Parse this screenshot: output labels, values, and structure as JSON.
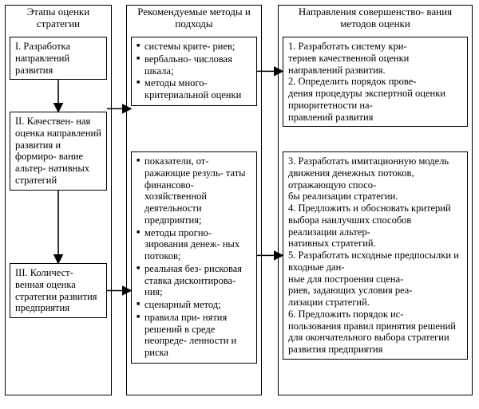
{
  "type": "flowchart",
  "background_color": "#ffffff",
  "border_color": "#000000",
  "text_color": "#000000",
  "font_family": "serif",
  "base_fontsize": 12.5,
  "headers": {
    "col1": "Этапы оценки стратегии",
    "col2": "Рекомендуемые методы и подходы",
    "col3": "Направления совершенство-\nвания методов оценки"
  },
  "col1": {
    "b1": "I. Разработка направлений развития",
    "b2": "II. Качествен-\nная оценка направлений развития и формиро-\nвание альтер-\nнативных стратегий",
    "b3": "III. Количест-\nвенная оценка стратегии развития предприятия"
  },
  "col2": {
    "top": [
      "системы крите-\nриев;",
      "вербально-\nчисловая шкала;",
      "методы много-\nкритериальной оценки"
    ],
    "bottom": [
      "показатели, от-\nражающие резуль-\nтаты финансово-\nхозяйственной деятельности предприятия;",
      "методы прогно-\nзирования денеж-\nных потоков;",
      "реальная без-\nрисковая ставка дисконтирова-\nния;",
      "сценарный метод;",
      "правила при-\nнятия решений в среде неопреде-\nленности и риска"
    ]
  },
  "col3": {
    "top": "1. Разработать систему кри-\nтериев качественной оценки направлений развития.\n2. Определить порядок прове-\nдения процедуры экспертной оценки приоритетности на-\nправлений развития",
    "bottom": "3. Разработать имитационную модель движения денежных потоков, отражающую спосо-\nбы реализации стратегии.\n4. Предложить и обосновать критерий выбора наилучших способов реализации альтер-\nнативных стратегий.\n5. Разработать исходные предпосылки и входные дан-\nные для построения сцена-\nриев, задающих условия реа-\nлизации стратегий.\n6. Предложить порядок ис-\nпользования правил принятия решений для окончательного выбора стратегии развития предприятия"
  },
  "arrows": {
    "stroke": "#000000",
    "stroke_width": 1.6,
    "head_size": 8,
    "edges": [
      {
        "from": "c1b1",
        "to": "c1b2",
        "dir": "down"
      },
      {
        "from": "c1b2",
        "to": "c1b3",
        "dir": "down"
      },
      {
        "from": "c1b2",
        "to": "c2top",
        "dir": "right"
      },
      {
        "from": "c2top",
        "to": "c3top",
        "dir": "right"
      },
      {
        "from": "c1b3",
        "to": "c2bot",
        "dir": "right"
      },
      {
        "from": "c2bot",
        "to": "c3bot",
        "dir": "right"
      }
    ]
  }
}
